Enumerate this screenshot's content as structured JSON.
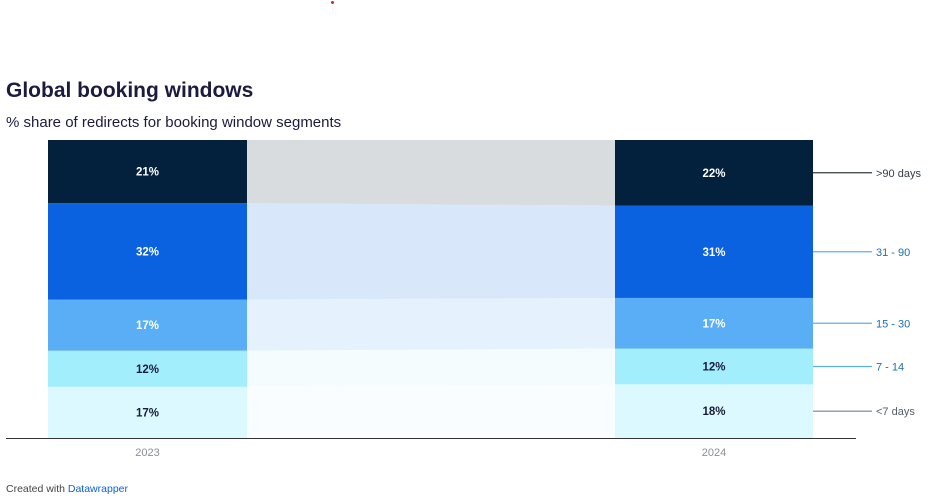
{
  "header": {
    "title": "Global booking windows",
    "subtitle": "% share of redirects for booking window segments"
  },
  "footer": {
    "prefix": "Created with",
    "link_label": "Datawrapper"
  },
  "colors": {
    "segments": [
      "#dbf9fe",
      "#a2eefd",
      "#5aaef5",
      "#0a62e0",
      "#03203c"
    ],
    "label_text": [
      "#181c3a",
      "#181c3a",
      "#ffffff",
      "#ffffff",
      "#ffffff"
    ],
    "legend_line": [
      "#8899aa",
      "#5aaef5",
      "#5aaef5",
      "#5aaef5",
      "#333b45"
    ],
    "legend_text": [
      "#555f6b",
      "#1b6fb3",
      "#1b6fb3",
      "#1b6fb3",
      "#333b45"
    ],
    "axis": "#333333"
  },
  "chart_data": {
    "type": "stacked-bar",
    "categories": [
      "2023",
      "2024"
    ],
    "series": [
      {
        "name": "<7 days",
        "values": [
          17,
          18
        ],
        "labels": [
          "17%",
          "18%"
        ]
      },
      {
        "name": "7 - 14",
        "values": [
          12,
          12
        ],
        "labels": [
          "12%",
          "12%"
        ]
      },
      {
        "name": "15 - 30",
        "values": [
          17,
          17
        ],
        "labels": [
          "17%",
          "17%"
        ]
      },
      {
        "name": "31 - 90",
        "values": [
          32,
          31
        ],
        "labels": [
          "32%",
          "31%"
        ]
      },
      {
        "name": ">90 days",
        "values": [
          21,
          22
        ],
        "labels": [
          "21%",
          "22%"
        ]
      }
    ],
    "legend_position": "right",
    "grid": false
  }
}
